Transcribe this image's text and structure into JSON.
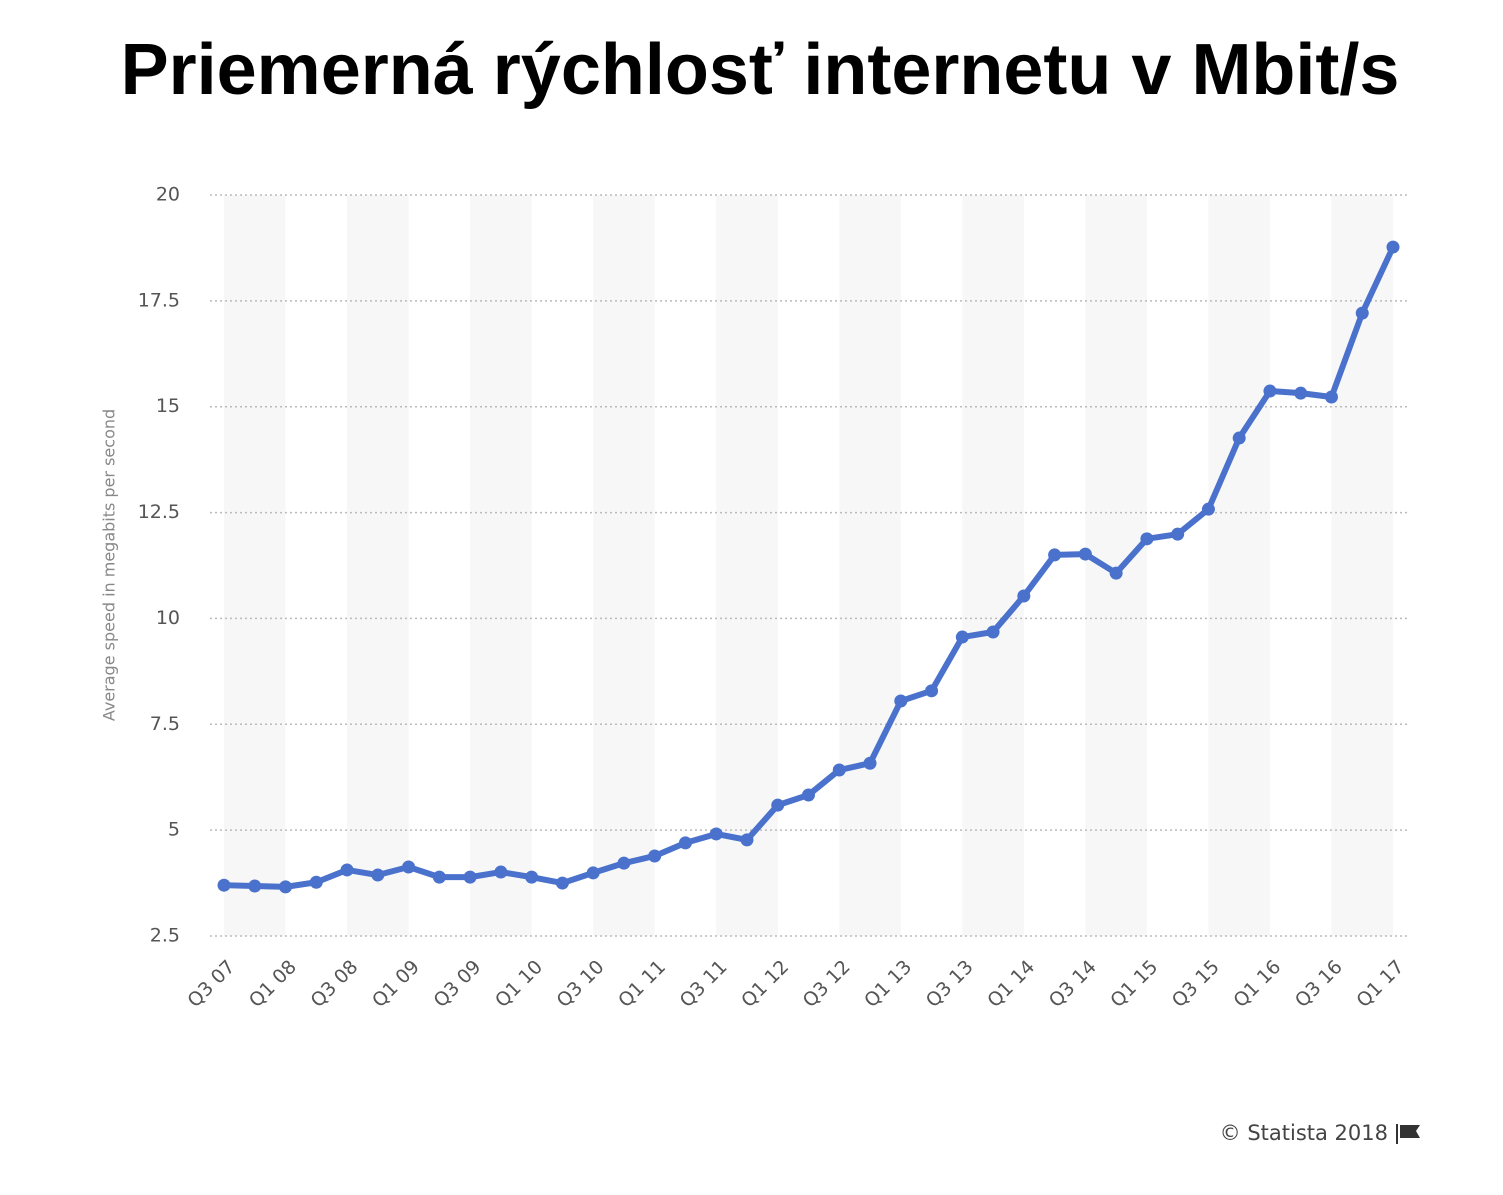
{
  "chart_data": {
    "type": "line",
    "title": "Priemerná rýchlosť internetu v Mbit/s",
    "y_label": "Average speed in megabits per second",
    "source": "© Statista 2018",
    "categories": [
      "Q3 07",
      null,
      "Q1 08",
      null,
      "Q3 08",
      null,
      "Q1 09",
      null,
      "Q3 09",
      null,
      "Q1 10",
      null,
      "Q3 10",
      null,
      "Q1 11",
      null,
      "Q3 11",
      null,
      "Q1 12",
      null,
      "Q3 12",
      null,
      "Q1 13",
      null,
      "Q3 13",
      null,
      "Q1 14",
      null,
      "Q3 14",
      null,
      "Q1 15",
      null,
      "Q3 15",
      null,
      "Q1 16",
      null,
      "Q3 16",
      null,
      "Q1 17"
    ],
    "series": [
      {
        "name": "Average speed",
        "color": "#4a72cd",
        "values": [
          3.7,
          3.68,
          3.66,
          3.77,
          4.06,
          3.94,
          4.13,
          3.89,
          3.89,
          4.01,
          3.89,
          3.75,
          3.99,
          4.22,
          4.39,
          4.7,
          4.91,
          4.77,
          5.59,
          5.83,
          6.42,
          6.58,
          8.05,
          8.29,
          9.56,
          9.68,
          10.53,
          11.5,
          11.52,
          11.07,
          11.88,
          11.99,
          12.58,
          14.26,
          15.37,
          15.32,
          15.23,
          17.21,
          18.77
        ]
      }
    ],
    "ylim": [
      2.5,
      20
    ],
    "yticks": [
      2.5,
      5,
      7.5,
      10,
      12.5,
      15,
      17.5,
      20
    ],
    "grid": true
  }
}
